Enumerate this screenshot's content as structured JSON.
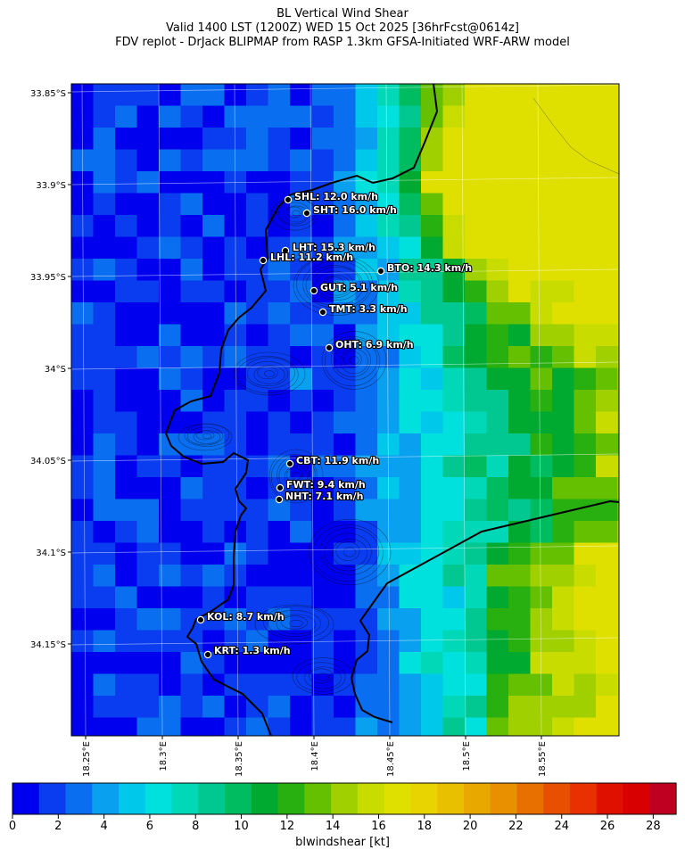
{
  "header": {
    "line1": "BL Vertical Wind Shear",
    "line2": "Valid 1400 LST (1200Z) WED 15 Oct 2025 [36hrFcst@0614z]",
    "line3": "FDV replot - DrJack BLIPMAP from RASP 1.3km GFSA-Initiated WRF-ARW model"
  },
  "map": {
    "lat_ticks": [
      "33.85°S",
      "33.9°S",
      "33.95°S",
      "34°S",
      "34.05°S",
      "34.1°S",
      "34.15°S"
    ],
    "lon_ticks": [
      "18.25°E",
      "18.3°E",
      "18.35°E",
      "18.4°E",
      "18.45°E",
      "18.5°E",
      "18.55°E"
    ],
    "sites": [
      {
        "label": "SHL: 12.0 km/h",
        "value": 12.0
      },
      {
        "label": "SHT: 16.0 km/h",
        "value": 16.0
      },
      {
        "label": "LHT: 15.3 km/h",
        "value": 15.3
      },
      {
        "label": "LHL: 11.2 km/h",
        "value": 11.2
      },
      {
        "label": "BTO: 14.3 km/h",
        "value": 14.3
      },
      {
        "label": "GUT: 5.1 km/h",
        "value": 5.1
      },
      {
        "label": "TMT: 3.3 km/h",
        "value": 3.3
      },
      {
        "label": "OHT: 6.9 km/h",
        "value": 6.9
      },
      {
        "label": "CBT: 11.9 km/h",
        "value": 11.9
      },
      {
        "label": "FWT: 9.4 km/h",
        "value": 9.4
      },
      {
        "label": "NHT: 7.1 km/h",
        "value": 7.1
      },
      {
        "label": "KOL: 8.7 km/h",
        "value": 8.7
      },
      {
        "label": "KRT: 1.3 km/h",
        "value": 1.3
      }
    ]
  },
  "colorbar": {
    "label": "blwindshear [kt]",
    "ticks": [
      "0",
      "2",
      "4",
      "6",
      "8",
      "10",
      "12",
      "14",
      "16",
      "18",
      "20",
      "22",
      "24",
      "26",
      "28"
    ],
    "colors": [
      "#0000ee",
      "#0a3cf0",
      "#0a6ef0",
      "#0aa0f0",
      "#00c8ea",
      "#00e0dc",
      "#00d8b8",
      "#00c890",
      "#00bc60",
      "#00aa30",
      "#28b010",
      "#64c000",
      "#a0d000",
      "#c8dc00",
      "#e0e000",
      "#e8d400",
      "#e8c000",
      "#e8a800",
      "#e89000",
      "#e87000",
      "#e85000",
      "#e83000",
      "#e01000",
      "#d80000",
      "#c00020"
    ]
  }
}
